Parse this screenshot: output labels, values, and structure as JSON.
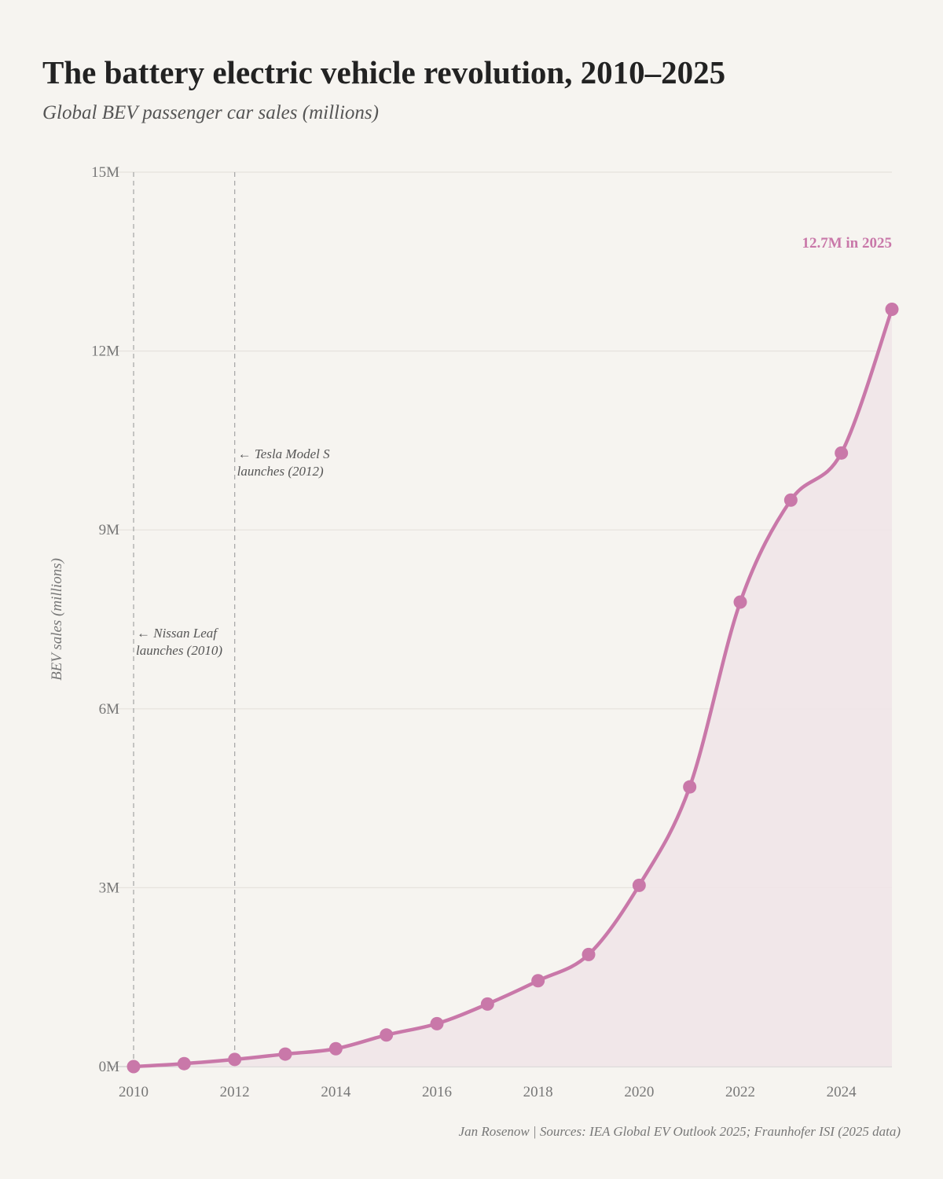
{
  "title": "The battery electric vehicle revolution, 2010–2025",
  "subtitle": "Global BEV passenger car sales (millions)",
  "footer": "Jan Rosenow  |  Sources: IEA Global EV Outlook 2025; Fraunhofer ISI (2025 data)",
  "chart_data": {
    "type": "line",
    "title": "The battery electric vehicle revolution, 2010–2025",
    "subtitle": "Global BEV passenger car sales (millions)",
    "xlabel": "",
    "ylabel": "BEV sales (millions)",
    "x": [
      2010,
      2011,
      2012,
      2013,
      2014,
      2015,
      2016,
      2017,
      2018,
      2019,
      2020,
      2021,
      2022,
      2023,
      2024,
      2025
    ],
    "series": [
      {
        "values": [
          0.0,
          0.05,
          0.12,
          0.21,
          0.3,
          0.53,
          0.72,
          1.05,
          1.44,
          1.88,
          3.04,
          4.69,
          7.79,
          9.5,
          10.29,
          12.7
        ]
      }
    ],
    "xlim": [
      2010,
      2025
    ],
    "ylim": [
      0,
      15
    ],
    "xticks": [
      "2010",
      "2012",
      "2014",
      "2016",
      "2018",
      "2020",
      "2022",
      "2024"
    ],
    "yticks": [
      "0M",
      "3M",
      "6M",
      "9M",
      "12M",
      "15M"
    ],
    "ytick_values": [
      0,
      3,
      6,
      9,
      12,
      15
    ],
    "xtick_values": [
      2010,
      2012,
      2014,
      2016,
      2018,
      2020,
      2022,
      2024
    ],
    "grid": "horizontal",
    "fill": "area",
    "line_color": "#c978a9",
    "fill_color": "#f1e5e8",
    "end_label": "12.7M in 2025",
    "annotations": [
      {
        "x": 2010,
        "lines": [
          "← Nissan Leaf",
          "launches (2010)"
        ],
        "y": 7.2
      },
      {
        "x": 2012,
        "lines": [
          "← Tesla Model S",
          "launches (2012)"
        ],
        "y": 10.2
      }
    ]
  }
}
